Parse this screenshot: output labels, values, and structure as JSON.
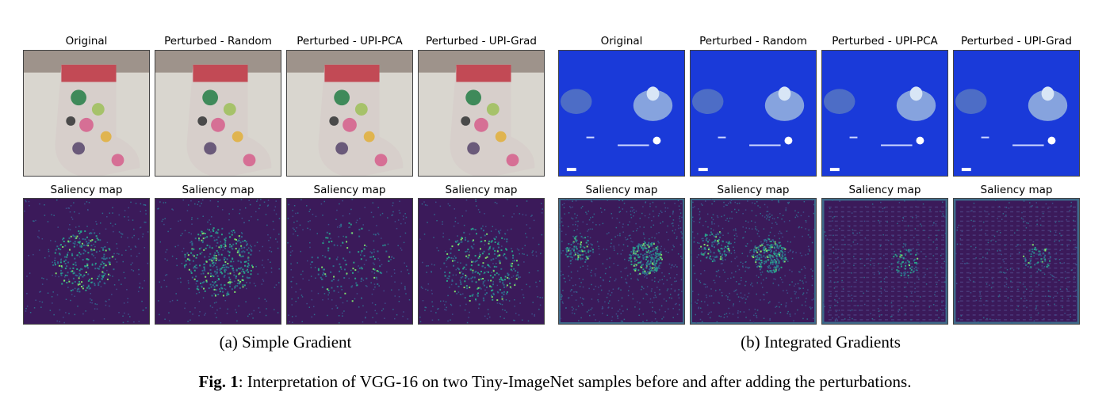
{
  "figure": {
    "subfigures": [
      {
        "caption": "(a) Simple Gradient",
        "top_titles": [
          "Original",
          "Perturbed - Random",
          "Perturbed - UPI-PCA",
          "Perturbed - UPI-Grad"
        ],
        "bottom_titles": [
          "Saliency map",
          "Saliency map",
          "Saliency map",
          "Saliency map"
        ]
      },
      {
        "caption": "(b) Integrated Gradients",
        "top_titles": [
          "Original",
          "Perturbed - Random",
          "Perturbed - UPI-PCA",
          "Perturbed - UPI-Grad"
        ],
        "bottom_titles": [
          "Saliency map",
          "Saliency map",
          "Saliency map",
          "Saliency map"
        ]
      }
    ],
    "caption_label": "Fig. 1",
    "caption_text": ": Interpretation of VGG-16 on two Tiny-ImageNet samples before and after adding the perturbations."
  },
  "colors": {
    "saliency_bg": "#3b1a5a",
    "saliency_hot": "#5fd37a",
    "stocking_bg": "#d9d6cf",
    "ocean_bg": "#1a3ad9"
  }
}
